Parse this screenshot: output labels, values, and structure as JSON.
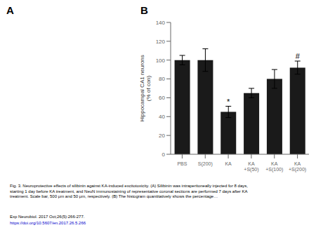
{
  "chart_data": {
    "type": "bar",
    "categories": [
      "PBS",
      "S(200)",
      "KA",
      "KA\n+S(50)",
      "KA\n+S(100)",
      "KA\n+S(200)"
    ],
    "values": [
      100,
      100,
      45,
      65,
      80,
      92
    ],
    "errors": [
      5,
      12,
      6,
      5,
      10,
      7
    ],
    "color": "#1a1a1a",
    "ylabel": "Hippocampal CA1 neurons\n(% of con)",
    "ylim": [
      0,
      140
    ],
    "yticks": [
      0,
      20,
      40,
      60,
      80,
      100,
      120,
      140
    ],
    "annotations": [
      {
        "text": "*",
        "x": "KA"
      },
      {
        "text": "#",
        "x": "KA\n+S(200)"
      },
      {
        "text": "A"
      },
      {
        "text": "B"
      },
      {
        "text": "Fig. 3. Neuroprotective effects of silibinin against KA-induced excitotoxicity. (A) Silibinin was intraperitoneally injected for 8 days,\nstarting 1 day before KA treatment, and NeuN immunostaining of representative coronal sections are performed 7 days after KA\ntreatment. Scale bar, 500 μm and 50 μm, respectively. (B) The histogram quantitatively shows the percentage…"
      },
      {
        "text": "Exp Neurobiol. 2017 Oct;26(5):266-277."
      },
      {
        "text": "https://doi.org/10.5607/en.2017.26.5.266",
        "color": "#0000cc"
      }
    ]
  }
}
